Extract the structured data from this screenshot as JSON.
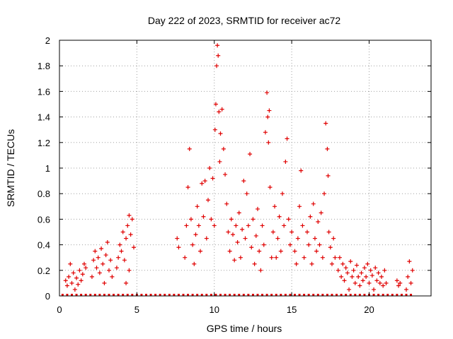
{
  "chart_data": {
    "type": "scatter",
    "title": "Day 222 of 2023, SRMTID for receiver ac72",
    "xlabel": "GPS time / hours",
    "ylabel": "SRMTID / TECUs",
    "xlim": [
      0,
      24
    ],
    "ylim": [
      0,
      2
    ],
    "x_ticks": [
      0,
      5,
      10,
      15,
      20
    ],
    "x_tick_labels": [
      "0",
      "5",
      "10",
      "15",
      "20"
    ],
    "y_ticks": [
      0,
      0.2,
      0.4,
      0.6,
      0.8,
      1,
      1.2,
      1.4,
      1.6,
      1.8,
      2
    ],
    "y_tick_labels": [
      "0",
      "0.2",
      "0.4",
      "0.6",
      "0.8",
      "1",
      "1.2",
      "1.4",
      "1.6",
      "1.8",
      "2"
    ],
    "grid": true,
    "marker": "+",
    "series": [
      {
        "name": "SRMTID",
        "color": "#e00000",
        "points": [
          [
            0.4,
            0.12
          ],
          [
            0.5,
            0.08
          ],
          [
            0.6,
            0.15
          ],
          [
            0.7,
            0.25
          ],
          [
            0.8,
            0.1
          ],
          [
            0.9,
            0.18
          ],
          [
            1.0,
            0.05
          ],
          [
            1.1,
            0.14
          ],
          [
            1.2,
            0.09
          ],
          [
            1.3,
            0.2
          ],
          [
            1.4,
            0.12
          ],
          [
            1.5,
            0.17
          ],
          [
            1.6,
            0.25
          ],
          [
            1.7,
            0.22
          ],
          [
            2.1,
            0.15
          ],
          [
            2.2,
            0.28
          ],
          [
            2.3,
            0.35
          ],
          [
            2.4,
            0.22
          ],
          [
            2.5,
            0.3
          ],
          [
            2.6,
            0.18
          ],
          [
            2.7,
            0.37
          ],
          [
            2.8,
            0.25
          ],
          [
            2.9,
            0.1
          ],
          [
            3.0,
            0.32
          ],
          [
            3.1,
            0.42
          ],
          [
            3.2,
            0.2
          ],
          [
            3.3,
            0.28
          ],
          [
            3.4,
            0.15
          ],
          [
            3.7,
            0.22
          ],
          [
            3.8,
            0.3
          ],
          [
            3.9,
            0.4
          ],
          [
            4.0,
            0.35
          ],
          [
            4.1,
            0.5
          ],
          [
            4.2,
            0.28
          ],
          [
            4.3,
            0.45
          ],
          [
            4.4,
            0.55
          ],
          [
            4.5,
            0.63
          ],
          [
            4.6,
            0.48
          ],
          [
            4.7,
            0.6
          ],
          [
            4.8,
            0.38
          ],
          [
            4.3,
            0.1
          ],
          [
            4.5,
            0.2
          ],
          [
            7.6,
            0.45
          ],
          [
            7.7,
            0.38
          ],
          [
            8.1,
            0.3
          ],
          [
            8.2,
            0.55
          ],
          [
            8.3,
            0.85
          ],
          [
            8.4,
            1.15
          ],
          [
            8.5,
            0.6
          ],
          [
            8.6,
            0.4
          ],
          [
            8.7,
            0.25
          ],
          [
            8.8,
            0.48
          ],
          [
            8.9,
            0.7
          ],
          [
            9.0,
            0.55
          ],
          [
            9.1,
            0.35
          ],
          [
            9.2,
            0.88
          ],
          [
            9.3,
            0.62
          ],
          [
            9.4,
            0.9
          ],
          [
            9.5,
            0.45
          ],
          [
            9.6,
            0.75
          ],
          [
            9.7,
            1.0
          ],
          [
            9.8,
            0.6
          ],
          [
            9.9,
            0.92
          ],
          [
            10.0,
            0.55
          ],
          [
            10.05,
            1.3
          ],
          [
            10.1,
            1.5
          ],
          [
            10.15,
            1.8
          ],
          [
            10.2,
            1.96
          ],
          [
            10.25,
            1.88
          ],
          [
            10.3,
            1.44
          ],
          [
            10.35,
            1.05
          ],
          [
            10.4,
            1.27
          ],
          [
            10.5,
            1.46
          ],
          [
            10.6,
            1.15
          ],
          [
            10.7,
            0.95
          ],
          [
            10.8,
            0.72
          ],
          [
            10.9,
            0.5
          ],
          [
            11.0,
            0.35
          ],
          [
            11.1,
            0.6
          ],
          [
            11.2,
            0.48
          ],
          [
            11.3,
            0.28
          ],
          [
            11.4,
            0.55
          ],
          [
            11.5,
            0.42
          ],
          [
            11.6,
            0.65
          ],
          [
            11.7,
            0.3
          ],
          [
            11.8,
            0.52
          ],
          [
            11.9,
            0.9
          ],
          [
            12.0,
            0.45
          ],
          [
            12.1,
            0.8
          ],
          [
            12.2,
            0.55
          ],
          [
            12.3,
            1.11
          ],
          [
            12.4,
            0.38
          ],
          [
            12.5,
            0.6
          ],
          [
            12.6,
            0.25
          ],
          [
            12.7,
            0.47
          ],
          [
            12.8,
            0.68
          ],
          [
            12.9,
            0.35
          ],
          [
            13.0,
            0.2
          ],
          [
            13.1,
            0.55
          ],
          [
            13.2,
            0.4
          ],
          [
            13.3,
            1.28
          ],
          [
            13.4,
            1.59
          ],
          [
            13.45,
            1.4
          ],
          [
            13.5,
            1.2
          ],
          [
            13.55,
            1.45
          ],
          [
            13.6,
            0.85
          ],
          [
            13.7,
            0.3
          ],
          [
            13.8,
            0.5
          ],
          [
            13.9,
            0.7
          ],
          [
            14.0,
            0.3
          ],
          [
            14.1,
            0.45
          ],
          [
            14.2,
            0.62
          ],
          [
            14.3,
            0.35
          ],
          [
            14.4,
            0.8
          ],
          [
            14.5,
            0.55
          ],
          [
            14.6,
            1.05
          ],
          [
            14.7,
            1.23
          ],
          [
            14.8,
            0.6
          ],
          [
            14.9,
            0.4
          ],
          [
            15.0,
            0.5
          ],
          [
            15.2,
            0.35
          ],
          [
            15.3,
            0.25
          ],
          [
            15.4,
            0.45
          ],
          [
            15.5,
            0.7
          ],
          [
            15.6,
            0.98
          ],
          [
            15.7,
            0.55
          ],
          [
            15.8,
            0.3
          ],
          [
            16.0,
            0.5
          ],
          [
            16.1,
            0.4
          ],
          [
            16.2,
            0.62
          ],
          [
            16.3,
            0.25
          ],
          [
            16.4,
            0.72
          ],
          [
            16.5,
            0.45
          ],
          [
            16.6,
            0.35
          ],
          [
            16.7,
            0.58
          ],
          [
            16.8,
            0.4
          ],
          [
            16.9,
            0.65
          ],
          [
            17.0,
            0.3
          ],
          [
            17.1,
            0.8
          ],
          [
            17.2,
            1.35
          ],
          [
            17.3,
            1.15
          ],
          [
            17.35,
            0.94
          ],
          [
            17.4,
            0.5
          ],
          [
            17.5,
            0.38
          ],
          [
            17.6,
            0.25
          ],
          [
            17.7,
            0.45
          ],
          [
            17.8,
            0.3
          ],
          [
            18.0,
            0.2
          ],
          [
            18.1,
            0.3
          ],
          [
            18.2,
            0.15
          ],
          [
            18.3,
            0.25
          ],
          [
            18.4,
            0.12
          ],
          [
            18.5,
            0.22
          ],
          [
            18.6,
            0.18
          ],
          [
            18.7,
            0.05
          ],
          [
            18.8,
            0.27
          ],
          [
            18.9,
            0.15
          ],
          [
            19.0,
            0.2
          ],
          [
            19.1,
            0.1
          ],
          [
            19.2,
            0.24
          ],
          [
            19.3,
            0.15
          ],
          [
            19.4,
            0.08
          ],
          [
            19.5,
            0.18
          ],
          [
            19.6,
            0.12
          ],
          [
            19.7,
            0.22
          ],
          [
            19.8,
            0.15
          ],
          [
            19.9,
            0.25
          ],
          [
            20.0,
            0.1
          ],
          [
            20.1,
            0.2
          ],
          [
            20.2,
            0.16
          ],
          [
            20.3,
            0.05
          ],
          [
            20.4,
            0.22
          ],
          [
            20.5,
            0.12
          ],
          [
            20.6,
            0.18
          ],
          [
            20.7,
            0.1
          ],
          [
            20.8,
            0.15
          ],
          [
            20.9,
            0.08
          ],
          [
            21.0,
            0.2
          ],
          [
            21.1,
            0.1
          ],
          [
            21.8,
            0.12
          ],
          [
            21.9,
            0.08
          ],
          [
            22.0,
            0.1
          ],
          [
            22.4,
            0.05
          ],
          [
            22.5,
            0.15
          ],
          [
            22.6,
            0.27
          ],
          [
            22.7,
            0.1
          ],
          [
            22.8,
            0.2
          ]
        ]
      }
    ]
  }
}
